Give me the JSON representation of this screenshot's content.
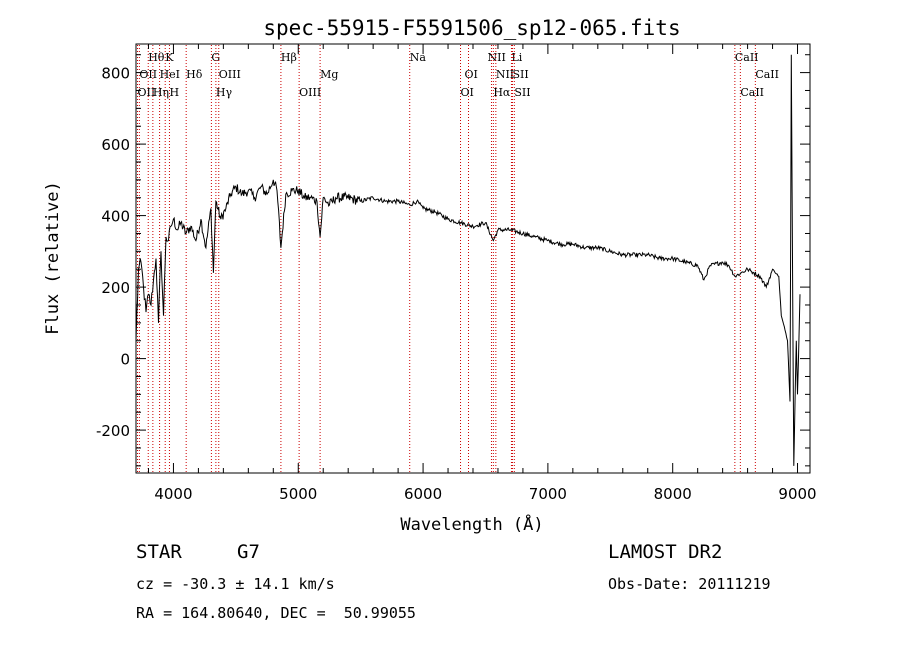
{
  "chart_data": {
    "type": "line",
    "title": "spec-55915-F5591506_sp12-065.fits",
    "xlabel": "Wavelength (Å)",
    "ylabel": "Flux (relative)",
    "xlim": [
      3700,
      9100
    ],
    "ylim": [
      -320,
      880
    ],
    "xticks": [
      4000,
      5000,
      6000,
      7000,
      8000,
      9000
    ],
    "yticks": [
      -200,
      0,
      200,
      400,
      600,
      800
    ],
    "line_color": "#000000",
    "marker_color": "#cc0000",
    "series": [
      {
        "x": [
          3700,
          3720,
          3740,
          3760,
          3780,
          3800,
          3820,
          3840,
          3860,
          3880,
          3900,
          3920,
          3940,
          3960,
          3980,
          4000,
          4030,
          4060,
          4100,
          4140,
          4180,
          4220,
          4260,
          4300,
          4320,
          4340,
          4380,
          4420,
          4460,
          4500,
          4550,
          4600,
          4650,
          4700,
          4750,
          4800,
          4830,
          4861,
          4900,
          4950,
          5000,
          5050,
          5100,
          5150,
          5175,
          5200,
          5250,
          5300,
          5400,
          5500,
          5600,
          5700,
          5800,
          5893,
          5950,
          6000,
          6100,
          6200,
          6300,
          6400,
          6500,
          6563,
          6600,
          6700,
          6800,
          6900,
          7000,
          7100,
          7200,
          7300,
          7400,
          7500,
          7600,
          7700,
          7800,
          7900,
          8000,
          8100,
          8200,
          8250,
          8300,
          8400,
          8450,
          8500,
          8550,
          8600,
          8650,
          8700,
          8750,
          8800,
          8850,
          8870,
          8900,
          8920,
          8940,
          8950,
          8970,
          8990,
          9000,
          9020
        ],
        "y": [
          50,
          250,
          270,
          200,
          130,
          180,
          150,
          220,
          280,
          100,
          300,
          120,
          340,
          330,
          370,
          390,
          360,
          380,
          350,
          370,
          330,
          390,
          310,
          420,
          240,
          440,
          390,
          420,
          460,
          480,
          460,
          470,
          450,
          480,
          460,
          500,
          470,
          310,
          460,
          470,
          470,
          450,
          450,
          440,
          340,
          450,
          430,
          450,
          450,
          440,
          450,
          440,
          440,
          430,
          440,
          420,
          410,
          390,
          380,
          370,
          380,
          330,
          360,
          360,
          350,
          340,
          330,
          320,
          320,
          310,
          310,
          300,
          290,
          290,
          290,
          280,
          280,
          270,
          260,
          220,
          260,
          270,
          260,
          230,
          240,
          250,
          240,
          230,
          200,
          250,
          230,
          120,
          80,
          50,
          -120,
          850,
          -300,
          50,
          -100,
          180
        ]
      }
    ],
    "lines": [
      {
        "label": "Hθ",
        "x": 3798,
        "row": 0,
        "dx": 0
      },
      {
        "label": "K",
        "x": 3934,
        "row": 0,
        "dx": 0
      },
      {
        "label": "G",
        "x": 4304,
        "row": 0,
        "dx": 0
      },
      {
        "label": "Hβ",
        "x": 4861,
        "row": 0,
        "dx": 0
      },
      {
        "label": "Na",
        "x": 5893,
        "row": 0,
        "dx": 0
      },
      {
        "label": "NII",
        "x": 6548,
        "row": 0,
        "dx": -4
      },
      {
        "label": "Li",
        "x": 6708,
        "row": 0,
        "dx": 0
      },
      {
        "label": "CaII",
        "x": 8498,
        "row": 0,
        "dx": 0
      },
      {
        "label": "OII",
        "x": 3727,
        "row": 1,
        "dx": 0
      },
      {
        "label": "HeI",
        "x": 3889,
        "row": 1,
        "dx": 0
      },
      {
        "label": "Hδ",
        "x": 4102,
        "row": 1,
        "dx": 0
      },
      {
        "label": "OIII",
        "x": 4363,
        "row": 1,
        "dx": 0
      },
      {
        "label": "Mg",
        "x": 5175,
        "row": 1,
        "dx": 0
      },
      {
        "label": "OI",
        "x": 6364,
        "row": 1,
        "dx": -4
      },
      {
        "label": "NII",
        "x": 6583,
        "row": 1,
        "dx": 0
      },
      {
        "label": "SII",
        "x": 6716,
        "row": 1,
        "dx": 0
      },
      {
        "label": "CaII",
        "x": 8662,
        "row": 1,
        "dx": 0
      },
      {
        "label": "OII",
        "x": 3712,
        "row": 2,
        "dx": 0
      },
      {
        "label": "Hη",
        "x": 3835,
        "row": 2,
        "dx": 0
      },
      {
        "label": "H",
        "x": 3968,
        "row": 2,
        "dx": 0
      },
      {
        "label": "Hγ",
        "x": 4340,
        "row": 2,
        "dx": 0
      },
      {
        "label": "OIII",
        "x": 5007,
        "row": 2,
        "dx": 0
      },
      {
        "label": "OI",
        "x": 6300,
        "row": 2,
        "dx": 0
      },
      {
        "label": "Hα",
        "x": 6563,
        "row": 2,
        "dx": 0
      },
      {
        "label": "SII",
        "x": 6731,
        "row": 2,
        "dx": 0
      },
      {
        "label": "CaII",
        "x": 8542,
        "row": 2,
        "dx": 0
      }
    ]
  },
  "info": {
    "class_label": "STAR",
    "subclass": "G7",
    "survey": "LAMOST DR2",
    "redshift": "cz = -30.3 ± 14.1 km/s",
    "obs_date": "Obs-Date: 20111219",
    "coords": "RA = 164.80640, DEC =  50.99055"
  }
}
